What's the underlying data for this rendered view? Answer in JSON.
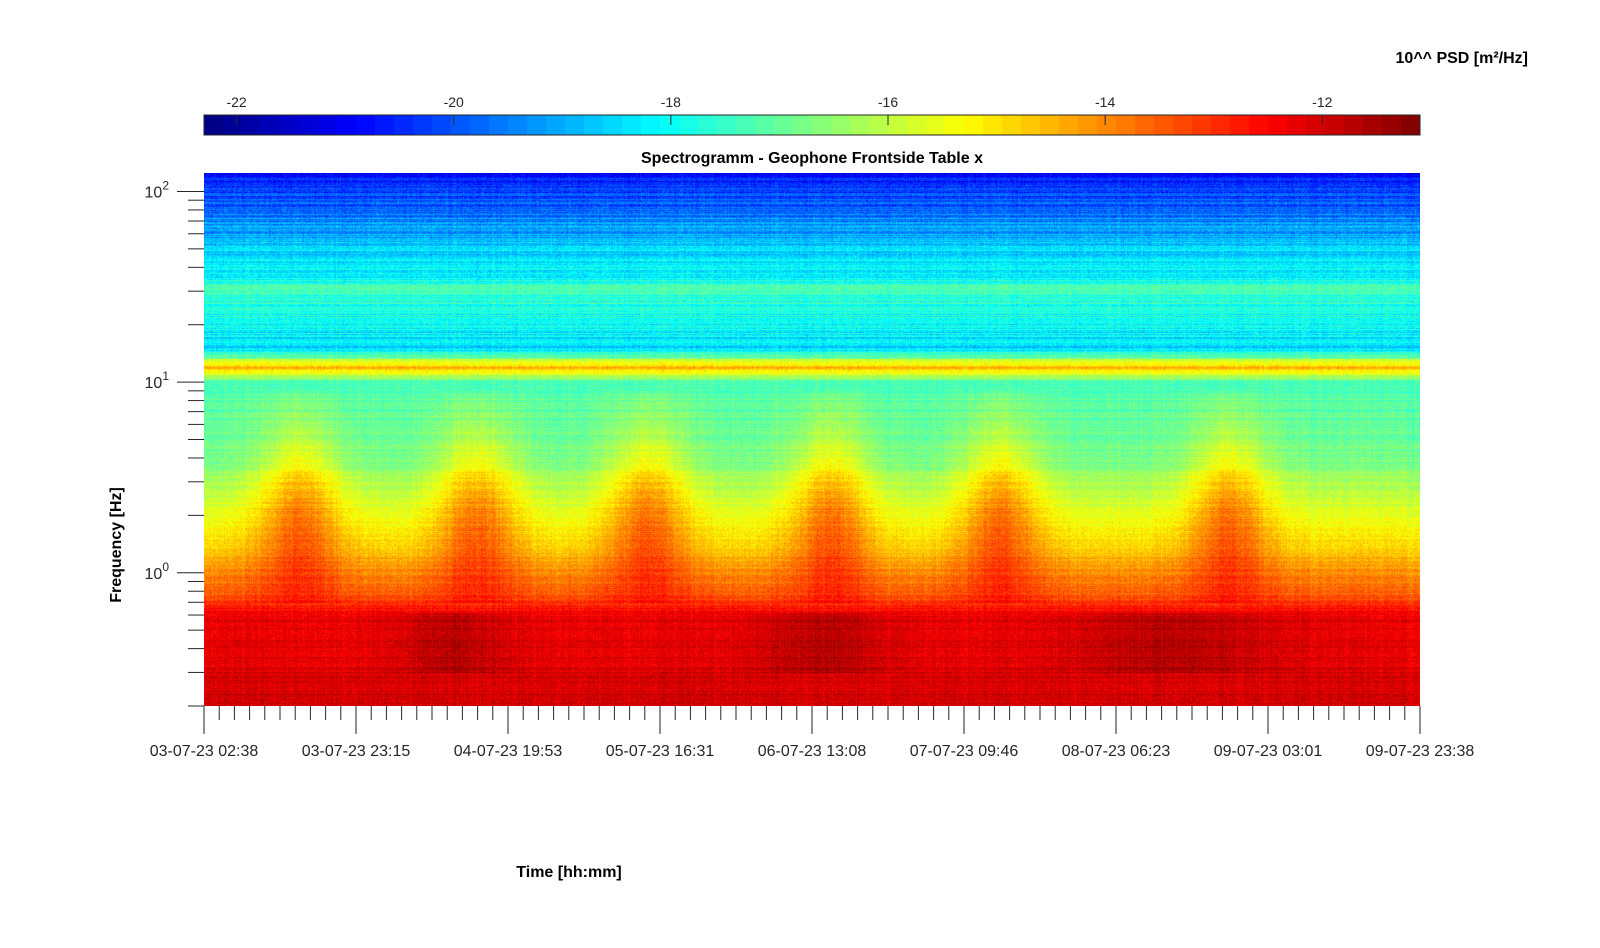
{
  "chart_data": {
    "type": "heatmap",
    "title": "Spectrogramm - Geophone Frontside Table x",
    "xlabel": "Time [hh:mm]",
    "ylabel": "Frequency [Hz]",
    "x_ticks": [
      "03-07-23 02:38",
      "03-07-23 23:15",
      "04-07-23 19:53",
      "05-07-23 16:31",
      "06-07-23 13:08",
      "07-07-23 09:46",
      "08-07-23 06:23",
      "09-07-23 03:01",
      "09-07-23 23:38"
    ],
    "x_minor_per_major": 10,
    "y_scale": "log",
    "y_range_hz": [
      0.2,
      125
    ],
    "y_ticks": [
      {
        "value": 1,
        "base": "10",
        "exp": "0"
      },
      {
        "value": 10,
        "base": "10",
        "exp": "1"
      },
      {
        "value": 100,
        "base": "10",
        "exp": "2"
      }
    ],
    "colorbar": {
      "label": "10^^ PSD [m²/Hz]",
      "range": [
        -22.3,
        -11.1
      ],
      "ticks": [
        "-22",
        "-20",
        "-18",
        "-16",
        "-14",
        "-12"
      ],
      "tick_values": [
        -22,
        -20,
        -18,
        -16,
        -14,
        -12
      ],
      "colormap": "jet",
      "location": "top"
    },
    "approx_psd_profile": [
      {
        "freq_hz": 0.2,
        "log10_psd": -12.0
      },
      {
        "freq_hz": 0.6,
        "log10_psd": -12.3
      },
      {
        "freq_hz": 0.8,
        "log10_psd": -13.6
      },
      {
        "freq_hz": 1.5,
        "log10_psd": -15.0
      },
      {
        "freq_hz": 4,
        "log10_psd": -16.8
      },
      {
        "freq_hz": 10,
        "log10_psd": -17.3
      },
      {
        "freq_hz": 12,
        "log10_psd": -14.5
      },
      {
        "freq_hz": 15,
        "log10_psd": -18.4
      },
      {
        "freq_hz": 30,
        "log10_psd": -17.6
      },
      {
        "freq_hz": 60,
        "log10_psd": -19.0
      },
      {
        "freq_hz": 125,
        "log10_psd": -20.8
      }
    ],
    "daytime_activity_centers_hours": [
      13,
      37,
      60,
      85,
      108,
      139
    ],
    "grid": false
  }
}
